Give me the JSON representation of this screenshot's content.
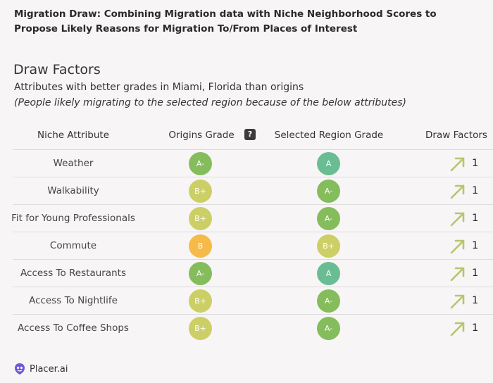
{
  "header": {
    "title": "Migration Draw:  Combining Migration data with Niche Neighborhood Scores to Propose Likely Reasons for Migration To/From Places of Interest"
  },
  "section": {
    "title": "Draw Factors",
    "subtitle": "Attributes with better grades in Miami, Florida than origins",
    "note": "(People likely migrating to the selected region because of the below attributes)"
  },
  "table": {
    "columns": [
      "Niche Attribute",
      "Origins Grade",
      "Selected Region Grade",
      "Draw Factors"
    ],
    "help_icon_label": "?",
    "rows": [
      {
        "attribute": "Weather",
        "origin": "A-",
        "region": "A",
        "draw": "1"
      },
      {
        "attribute": "Walkability",
        "origin": "B+",
        "region": "A-",
        "draw": "1"
      },
      {
        "attribute": "Fit for Young Professionals",
        "origin": "B+",
        "region": "A-",
        "draw": "1"
      },
      {
        "attribute": "Commute",
        "origin": "B",
        "region": "B+",
        "draw": "1"
      },
      {
        "attribute": "Access To Restaurants",
        "origin": "A-",
        "region": "A",
        "draw": "1"
      },
      {
        "attribute": "Access To Nightlife",
        "origin": "B+",
        "region": "A-",
        "draw": "1"
      },
      {
        "attribute": "Access To Coffee Shops",
        "origin": "B+",
        "region": "A-",
        "draw": "1"
      }
    ]
  },
  "grade_colors": {
    "A": "#5fb98a",
    "A-": "#7cb84f",
    "B+": "#c9cc5a",
    "B": "#f5b53a"
  },
  "arrow_color": "#b9c46a",
  "footer": {
    "logo_text": "Placer.ai"
  }
}
